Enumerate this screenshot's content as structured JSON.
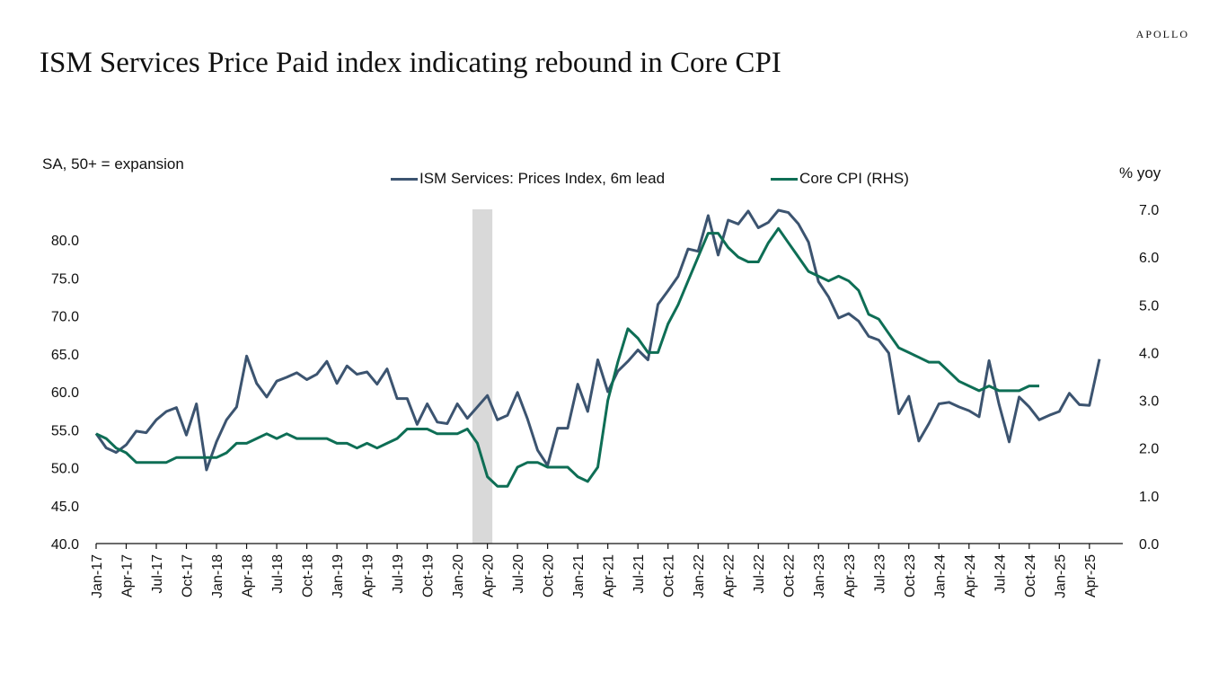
{
  "brand": "APOLLO",
  "chart_data": {
    "type": "line",
    "title": "ISM Services Price Paid index indicating rebound in Core CPI",
    "left_axis_note": "SA, 50+ = expansion",
    "right_axis_note": "% yoy",
    "y_left": {
      "ylim": [
        40,
        84
      ],
      "ticks": [
        "40.0",
        "45.0",
        "50.0",
        "55.0",
        "60.0",
        "65.0",
        "70.0",
        "75.0",
        "80.0"
      ]
    },
    "y_right": {
      "ylim": [
        0,
        7
      ],
      "ticks": [
        "0.0",
        "1.0",
        "2.0",
        "3.0",
        "4.0",
        "5.0",
        "6.0",
        "7.0"
      ]
    },
    "x_ticks": [
      "Jan-17",
      "Apr-17",
      "Jul-17",
      "Oct-17",
      "Jan-18",
      "Apr-18",
      "Jul-18",
      "Oct-18",
      "Jan-19",
      "Apr-19",
      "Jul-19",
      "Oct-19",
      "Jan-20",
      "Apr-20",
      "Jul-20",
      "Oct-20",
      "Jan-21",
      "Apr-21",
      "Jul-21",
      "Oct-21",
      "Jan-22",
      "Apr-22",
      "Jul-22",
      "Oct-22",
      "Jan-23",
      "Apr-23",
      "Jul-23",
      "Oct-23",
      "Jan-24",
      "Apr-24",
      "Jul-24",
      "Oct-24",
      "Jan-25",
      "Apr-25"
    ],
    "shading": {
      "from": "Mar-20",
      "to": "Apr-20",
      "color": "#d9d9d9"
    },
    "grid": false,
    "legend_position": "top-center",
    "series": [
      {
        "name": "ISM Services: Prices Index, 6m lead",
        "axis": "left",
        "color": "#3c5470",
        "values": [
          54.5,
          52.6,
          52.0,
          53.0,
          54.8,
          54.6,
          56.3,
          57.4,
          57.9,
          54.3,
          58.4,
          49.7,
          53.4,
          56.3,
          58.0,
          64.7,
          61.1,
          59.3,
          61.4,
          61.9,
          62.5,
          61.6,
          62.3,
          64.0,
          61.1,
          63.4,
          62.3,
          62.6,
          61.0,
          63.0,
          59.1,
          59.1,
          55.7,
          58.4,
          56.0,
          55.8,
          58.4,
          56.5,
          58.0,
          59.5,
          56.3,
          56.9,
          59.9,
          56.4,
          52.3,
          50.3,
          55.2,
          55.2,
          61.0,
          57.4,
          64.2,
          60.0,
          62.7,
          64.0,
          65.5,
          64.2,
          71.5,
          73.3,
          75.2,
          78.8,
          78.5,
          83.2,
          78.0,
          82.6,
          82.1,
          83.8,
          81.6,
          82.3,
          83.9,
          83.6,
          82.1,
          79.7,
          74.5,
          72.5,
          69.7,
          70.3,
          69.3,
          67.3,
          66.8,
          65.1,
          57.1,
          59.4,
          53.5,
          55.8,
          58.4,
          58.6,
          58.0,
          57.5,
          56.7,
          64.1,
          58.3,
          53.4,
          59.3,
          58.0,
          56.3,
          56.9,
          57.4,
          59.8,
          58.3,
          58.2,
          64.3
        ]
      },
      {
        "name": "Core CPI (RHS)",
        "axis": "right",
        "color": "#0e6e55",
        "values": [
          2.3,
          2.2,
          2.0,
          1.9,
          1.7,
          1.7,
          1.7,
          1.7,
          1.8,
          1.8,
          1.8,
          1.8,
          1.8,
          1.9,
          2.1,
          2.1,
          2.2,
          2.3,
          2.2,
          2.3,
          2.2,
          2.2,
          2.2,
          2.2,
          2.1,
          2.1,
          2.0,
          2.1,
          2.0,
          2.1,
          2.2,
          2.4,
          2.4,
          2.4,
          2.3,
          2.3,
          2.3,
          2.4,
          2.1,
          1.4,
          1.2,
          1.2,
          1.6,
          1.7,
          1.7,
          1.6,
          1.6,
          1.6,
          1.4,
          1.3,
          1.6,
          3.0,
          3.8,
          4.5,
          4.3,
          4.0,
          4.0,
          4.6,
          5.0,
          5.5,
          6.0,
          6.5,
          6.5,
          6.2,
          6.0,
          5.9,
          5.9,
          6.3,
          6.6,
          6.3,
          6.0,
          5.7,
          5.6,
          5.5,
          5.6,
          5.5,
          5.3,
          4.8,
          4.7,
          4.4,
          4.1,
          4.0,
          3.9,
          3.8,
          3.8,
          3.6,
          3.4,
          3.3,
          3.2,
          3.3,
          3.2,
          3.2,
          3.2,
          3.3,
          3.3
        ]
      }
    ]
  }
}
